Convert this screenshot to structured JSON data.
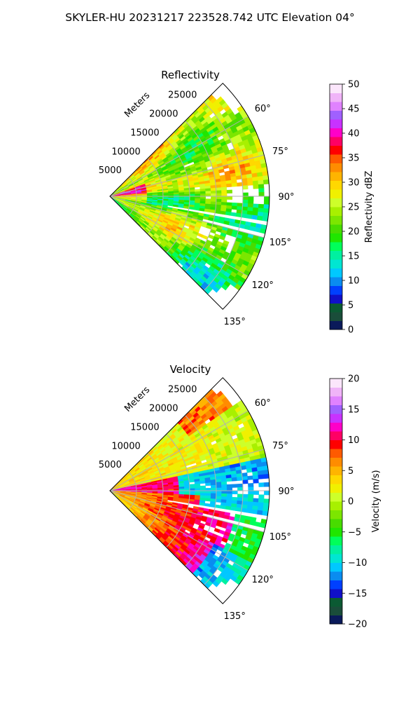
{
  "figure": {
    "suptitle": "SKYLER-HU  20231217  223528.742 UTC Elevation 04°"
  },
  "chart_data": [
    {
      "type": "heatmap",
      "projection": "polar-sector",
      "title": "Reflectivity",
      "radial_axis_label": "Meters",
      "radial_ticks": [
        5000,
        10000,
        15000,
        20000,
        25000
      ],
      "radial_tick_labels": [
        "5000",
        "10000",
        "15000",
        "20000",
        "25000"
      ],
      "radial_max": 30000,
      "azimuth_range_deg": [
        45,
        135
      ],
      "azimuth_ticks_deg": [
        60,
        75,
        90,
        105,
        120,
        135
      ],
      "azimuth_tick_labels": [
        "60°",
        "75°",
        "90°",
        "105°",
        "120°",
        "135°"
      ],
      "grid": true,
      "colorbar": {
        "label": "Reflectivity dBZ",
        "range": [
          0,
          50
        ],
        "ticks": [
          0,
          5,
          10,
          15,
          20,
          25,
          30,
          35,
          40,
          45,
          50
        ],
        "tick_labels": [
          "0",
          "5",
          "10",
          "15",
          "20",
          "25",
          "30",
          "35",
          "40",
          "45",
          "50"
        ],
        "colors": [
          "#0a1a5a",
          "#1a4d3a",
          "#0b5a33",
          "#1010c8",
          "#0040ff",
          "#0a8cf0",
          "#00c8ff",
          "#00e6d2",
          "#00f0a0",
          "#00ff5a",
          "#20e600",
          "#48dc00",
          "#7ce600",
          "#a8f000",
          "#cdff2a",
          "#f0f000",
          "#ffd800",
          "#ffb400",
          "#ff8c00",
          "#ff5a00",
          "#ff0000",
          "#ff0064",
          "#ff00c8",
          "#c832ff",
          "#a060ff",
          "#e082ff",
          "#f0b4f8",
          "#fbe6fb"
        ]
      }
    },
    {
      "type": "heatmap",
      "projection": "polar-sector",
      "title": "Velocity",
      "radial_axis_label": "Meters",
      "radial_ticks": [
        5000,
        10000,
        15000,
        20000,
        25000
      ],
      "radial_tick_labels": [
        "5000",
        "10000",
        "15000",
        "20000",
        "25000"
      ],
      "radial_max": 30000,
      "azimuth_range_deg": [
        45,
        135
      ],
      "azimuth_ticks_deg": [
        60,
        75,
        90,
        105,
        120,
        135
      ],
      "azimuth_tick_labels": [
        "60°",
        "75°",
        "90°",
        "105°",
        "120°",
        "135°"
      ],
      "grid": true,
      "colorbar": {
        "label": "Velocity (m/s)",
        "range": [
          -20,
          20
        ],
        "ticks": [
          -20,
          -15,
          -10,
          -5,
          0,
          5,
          10,
          15,
          20
        ],
        "tick_labels": [
          "−20",
          "−15",
          "−10",
          "−5",
          "0",
          "5",
          "10",
          "15",
          "20"
        ],
        "colors": [
          "#0a1a5a",
          "#1a4d3a",
          "#0b5a33",
          "#1010c8",
          "#0040ff",
          "#0a8cf0",
          "#00c8ff",
          "#00e6d2",
          "#00f0a0",
          "#00ff5a",
          "#20e600",
          "#48dc00",
          "#7ce600",
          "#a8f000",
          "#cdff2a",
          "#f0f000",
          "#ffd800",
          "#ffb400",
          "#ff8c00",
          "#ff5a00",
          "#ff0000",
          "#ff0064",
          "#ff00c8",
          "#c832ff",
          "#a060ff",
          "#e082ff",
          "#f0b4f8",
          "#fbe6fb"
        ]
      }
    }
  ]
}
